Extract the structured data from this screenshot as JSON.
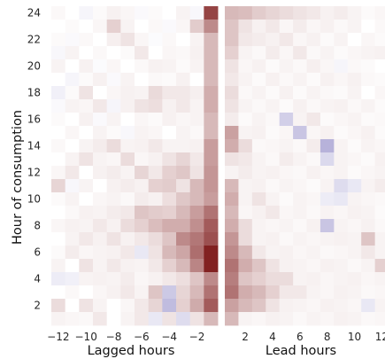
{
  "chart_data": {
    "type": "heatmap",
    "ylabel": "Hour of consumption",
    "y_ticks": [
      2,
      4,
      6,
      8,
      10,
      12,
      14,
      16,
      18,
      20,
      22,
      24
    ],
    "ylim": [
      1,
      24
    ],
    "color_scale": {
      "negative": "#4a3fa3",
      "neutral": "#ffffff",
      "positive": "#7b1515",
      "value_range": [
        -1,
        1
      ]
    },
    "panels": [
      {
        "name": "lagged",
        "xlabel": "Lagged hours",
        "x": [
          -12,
          -11,
          -10,
          -9,
          -8,
          -7,
          -6,
          -5,
          -4,
          -3,
          -2,
          -1
        ],
        "x_ticks": [
          -12,
          -10,
          -8,
          -6,
          -4,
          -2
        ],
        "rows_top_to_bottom": [
          [
            0.03,
            0.0,
            -0.05,
            0.02,
            0.06,
            0.04,
            -0.03,
            0.02,
            0.0,
            0.05,
            -0.04,
            0.8
          ],
          [
            0.0,
            0.02,
            0.0,
            0.04,
            0.2,
            0.05,
            0.0,
            0.03,
            -0.03,
            0.04,
            0.22,
            0.5
          ],
          [
            0.02,
            -0.03,
            0.03,
            0.0,
            0.07,
            0.12,
            0.04,
            -0.02,
            0.03,
            0.0,
            0.05,
            0.3
          ],
          [
            -0.04,
            0.05,
            0.0,
            0.03,
            0.0,
            0.02,
            0.1,
            0.0,
            0.04,
            0.03,
            0.06,
            0.3
          ],
          [
            0.05,
            0.0,
            0.06,
            -0.02,
            0.04,
            0.0,
            0.03,
            0.06,
            0.05,
            0.02,
            0.05,
            0.3
          ],
          [
            0.0,
            -0.05,
            0.02,
            0.06,
            -0.03,
            0.05,
            0.0,
            0.03,
            0.02,
            0.06,
            0.0,
            0.3
          ],
          [
            -0.08,
            0.02,
            0.12,
            0.0,
            0.04,
            0.06,
            0.05,
            0.16,
            0.1,
            0.1,
            0.07,
            0.35
          ],
          [
            -0.03,
            0.05,
            0.04,
            0.1,
            -0.05,
            0.06,
            0.12,
            0.14,
            0.06,
            0.1,
            0.05,
            0.35
          ],
          [
            0.02,
            0.0,
            0.06,
            -0.03,
            0.05,
            0.0,
            0.04,
            0.02,
            0.06,
            0.04,
            0.05,
            0.3
          ],
          [
            0.0,
            0.04,
            0.0,
            0.05,
            0.02,
            -0.04,
            0.05,
            0.04,
            0.0,
            0.05,
            0.03,
            0.3
          ],
          [
            0.03,
            0.0,
            0.05,
            0.08,
            0.15,
            0.05,
            0.06,
            0.1,
            0.05,
            0.05,
            0.06,
            0.42
          ],
          [
            0.0,
            0.05,
            0.12,
            0.05,
            0.04,
            0.15,
            0.04,
            0.06,
            0.12,
            0.18,
            0.1,
            0.42
          ],
          [
            0.04,
            0.1,
            0.0,
            0.06,
            0.08,
            0.05,
            0.18,
            0.1,
            0.2,
            0.24,
            0.12,
            0.45
          ],
          [
            0.18,
            -0.04,
            0.05,
            0.0,
            0.06,
            0.08,
            0.06,
            0.2,
            0.22,
            0.12,
            0.3,
            0.45
          ],
          [
            0.02,
            0.05,
            0.0,
            0.04,
            0.05,
            0.03,
            0.08,
            0.06,
            0.14,
            0.24,
            0.3,
            0.42
          ],
          [
            0.0,
            0.03,
            0.06,
            0.05,
            0.08,
            0.1,
            0.25,
            0.22,
            0.2,
            0.3,
            0.42,
            0.6
          ],
          [
            0.04,
            0.06,
            0.05,
            0.1,
            0.06,
            0.15,
            0.2,
            0.28,
            0.35,
            0.35,
            0.48,
            0.7
          ],
          [
            0.0,
            0.05,
            0.1,
            0.06,
            0.12,
            0.06,
            0.1,
            0.15,
            0.25,
            0.5,
            0.58,
            0.75
          ],
          [
            0.02,
            0.08,
            0.04,
            0.05,
            0.06,
            0.1,
            -0.12,
            0.12,
            0.3,
            0.38,
            0.62,
            0.95
          ],
          [
            0.05,
            0.0,
            0.12,
            0.05,
            0.1,
            0.06,
            0.05,
            0.1,
            0.2,
            0.3,
            0.52,
            0.95
          ],
          [
            -0.1,
            -0.08,
            0.05,
            0.06,
            0.05,
            0.08,
            0.04,
            0.06,
            0.1,
            0.14,
            0.25,
            0.5
          ],
          [
            0.0,
            0.03,
            0.0,
            0.04,
            0.06,
            0.1,
            0.05,
            0.25,
            -0.28,
            0.18,
            0.3,
            0.6
          ],
          [
            0.15,
            0.0,
            0.12,
            0.05,
            0.0,
            0.04,
            0.1,
            0.18,
            -0.35,
            0.2,
            0.36,
            0.7
          ],
          [
            0.05,
            0.04,
            0.03,
            0.1,
            0.0,
            0.05,
            0.1,
            -0.12,
            0.12,
            -0.18,
            0.12,
            0.3
          ]
        ]
      },
      {
        "name": "lead",
        "xlabel": "Lead hours",
        "x": [
          1,
          2,
          3,
          4,
          5,
          6,
          7,
          8,
          9,
          10,
          11,
          12
        ],
        "x_ticks": [
          2,
          4,
          6,
          8,
          10,
          12
        ],
        "rows_top_to_bottom": [
          [
            0.3,
            0.28,
            0.22,
            0.18,
            0.15,
            0.12,
            0.1,
            0.06,
            0.08,
            0.05,
            0.02,
            0.04
          ],
          [
            0.25,
            0.12,
            0.06,
            0.1,
            0.04,
            0.08,
            0.04,
            0.06,
            0.03,
            0.05,
            0.0,
            0.03
          ],
          [
            0.25,
            0.1,
            0.08,
            0.06,
            0.1,
            0.04,
            0.06,
            0.02,
            0.05,
            0.0,
            0.04,
            0.02
          ],
          [
            0.2,
            0.05,
            0.03,
            0.08,
            0.04,
            0.1,
            0.03,
            0.05,
            0.02,
            0.04,
            0.05,
            0.06
          ],
          [
            0.12,
            0.04,
            0.06,
            0.02,
            0.05,
            0.03,
            0.07,
            0.04,
            -0.05,
            0.03,
            0.02,
            0.0
          ],
          [
            0.1,
            0.05,
            0.02,
            0.06,
            0.03,
            0.05,
            0.02,
            0.06,
            0.04,
            0.06,
            0.03,
            0.02
          ],
          [
            0.15,
            0.03,
            0.05,
            0.02,
            0.06,
            0.02,
            0.05,
            0.03,
            0.02,
            0.05,
            0.0,
            0.04
          ],
          [
            0.12,
            0.05,
            0.03,
            0.05,
            0.02,
            0.06,
            0.03,
            0.05,
            0.06,
            0.03,
            0.05,
            0.02
          ],
          [
            0.08,
            0.02,
            0.05,
            0.03,
            -0.25,
            0.05,
            0.1,
            0.02,
            0.04,
            0.05,
            0.02,
            0.03
          ],
          [
            0.4,
            0.05,
            0.06,
            0.02,
            0.04,
            -0.3,
            0.04,
            0.06,
            0.02,
            0.04,
            0.06,
            0.02
          ],
          [
            0.35,
            0.15,
            0.03,
            0.04,
            0.05,
            0.03,
            0.08,
            -0.4,
            0.05,
            0.02,
            0.05,
            0.04
          ],
          [
            0.12,
            0.1,
            0.05,
            0.03,
            0.08,
            0.05,
            0.03,
            -0.2,
            0.05,
            0.04,
            0.02,
            0.06
          ],
          [
            0.05,
            0.08,
            0.05,
            0.06,
            0.04,
            0.03,
            0.06,
            0.04,
            0.05,
            0.02,
            0.04,
            0.05
          ],
          [
            0.3,
            0.05,
            0.06,
            0.03,
            0.05,
            0.04,
            0.02,
            0.05,
            -0.18,
            -0.12,
            0.05,
            0.08
          ],
          [
            0.35,
            0.05,
            0.12,
            0.05,
            0.02,
            0.05,
            0.04,
            -0.1,
            -0.12,
            0.05,
            0.04,
            0.03
          ],
          [
            0.3,
            0.04,
            0.06,
            0.1,
            0.04,
            0.05,
            0.03,
            0.05,
            0.04,
            0.06,
            0.05,
            0.02
          ],
          [
            0.35,
            0.15,
            0.05,
            0.04,
            0.05,
            0.03,
            0.06,
            -0.3,
            0.05,
            0.04,
            0.06,
            0.03
          ],
          [
            0.45,
            0.15,
            0.05,
            0.06,
            0.03,
            0.05,
            0.04,
            0.05,
            0.06,
            0.05,
            0.25,
            0.05
          ],
          [
            0.5,
            0.3,
            0.1,
            0.05,
            0.06,
            0.04,
            0.05,
            0.03,
            0.04,
            0.05,
            0.1,
            0.05
          ],
          [
            0.6,
            0.35,
            0.25,
            0.12,
            0.06,
            0.05,
            0.04,
            0.06,
            0.05,
            0.03,
            0.05,
            0.2
          ],
          [
            0.55,
            0.25,
            0.2,
            0.15,
            0.15,
            0.05,
            0.06,
            0.04,
            0.05,
            0.06,
            0.04,
            0.05
          ],
          [
            0.6,
            0.35,
            0.3,
            0.2,
            0.1,
            0.1,
            0.05,
            0.04,
            0.06,
            0.05,
            0.03,
            0.04
          ],
          [
            0.4,
            0.3,
            0.25,
            0.12,
            0.06,
            0.05,
            0.04,
            0.06,
            0.05,
            0.04,
            -0.12,
            0.05
          ],
          [
            0.3,
            0.05,
            0.04,
            0.06,
            0.05,
            0.03,
            0.05,
            0.04,
            0.06,
            0.05,
            0.03,
            0.04
          ]
        ]
      }
    ]
  }
}
